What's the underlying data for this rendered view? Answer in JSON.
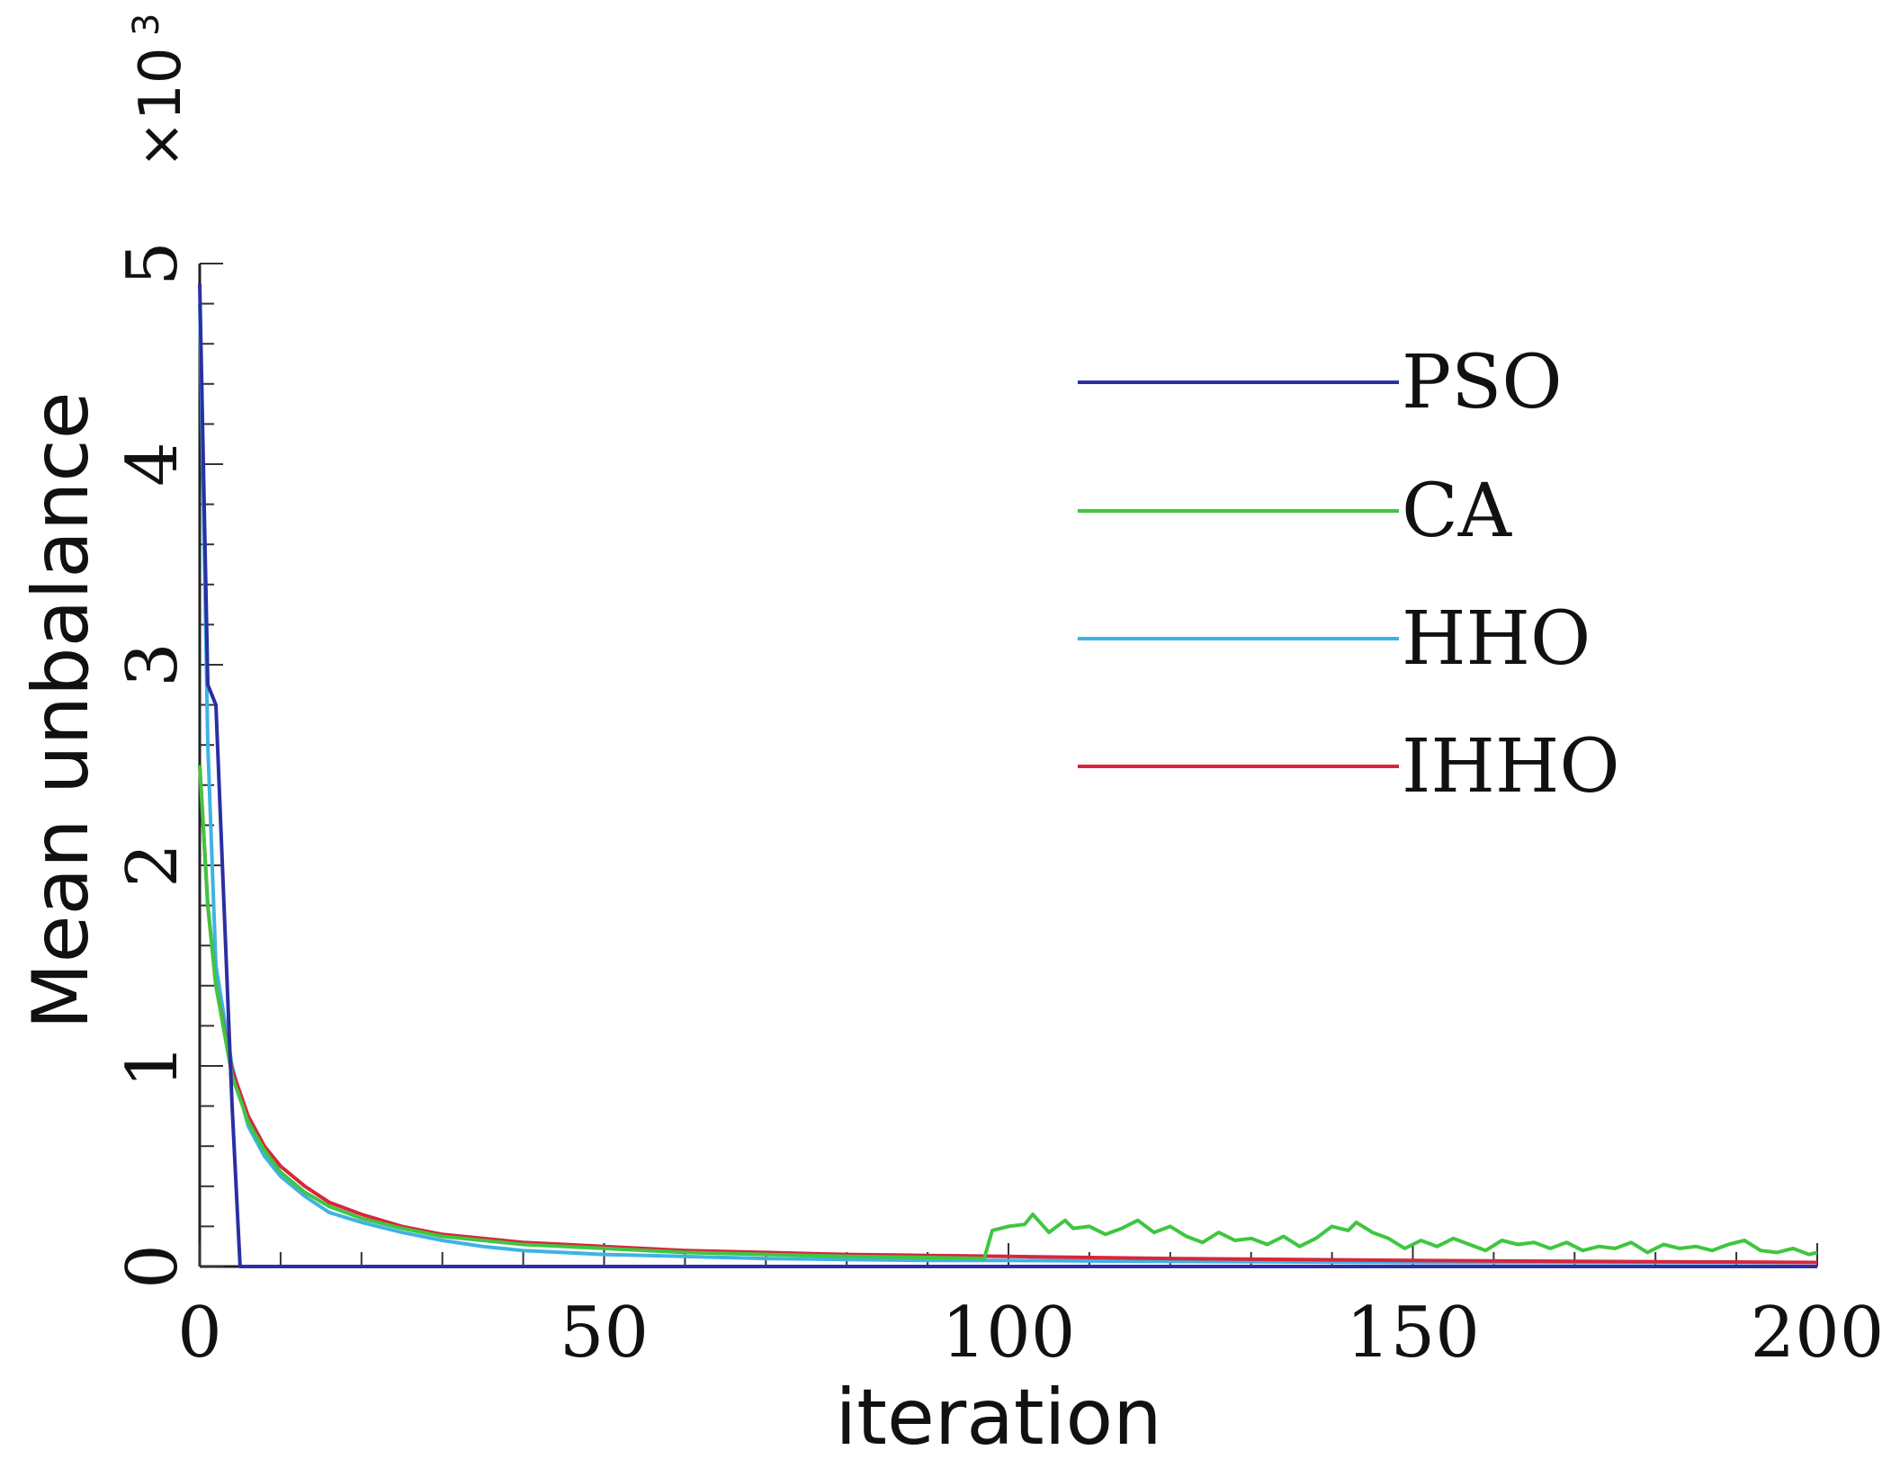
{
  "chart_data": {
    "type": "line",
    "title": "",
    "xlabel": "iteration",
    "ylabel": "Mean unbalance",
    "y_scale_label": "×10",
    "y_scale_exponent": "3",
    "xlim": [
      0,
      200
    ],
    "ylim": [
      0,
      5
    ],
    "xticks": [
      0,
      50,
      100,
      150,
      200
    ],
    "xtick_labels": [
      "0",
      "50",
      "100",
      "150",
      "200"
    ],
    "yticks": [
      0,
      1,
      2,
      3,
      4,
      5
    ],
    "ytick_labels": [
      "0",
      "1",
      "2",
      "3",
      "4",
      "5"
    ],
    "grid": false,
    "legend_position": "top-right",
    "series": [
      {
        "name": "PSO",
        "color": "#2b2fa3",
        "x": [
          0,
          1,
          2,
          3,
          4,
          5,
          200
        ],
        "y": [
          4.9,
          2.9,
          2.8,
          1.8,
          0.8,
          0.0,
          0.0
        ]
      },
      {
        "name": "CA",
        "color": "#3fc63f",
        "x": [
          0,
          1,
          2,
          4,
          6,
          8,
          10,
          13,
          16,
          20,
          25,
          30,
          35,
          40,
          50,
          60,
          70,
          80,
          90,
          97,
          98,
          100,
          102,
          103,
          105,
          107,
          108,
          110,
          112,
          114,
          116,
          118,
          120,
          122,
          124,
          126,
          128,
          130,
          132,
          134,
          136,
          138,
          140,
          142,
          143,
          145,
          147,
          149,
          151,
          153,
          155,
          157,
          159,
          161,
          163,
          165,
          167,
          169,
          171,
          173,
          175,
          177,
          179,
          181,
          183,
          185,
          187,
          189,
          191,
          193,
          195,
          197,
          199,
          200
        ],
        "y": [
          2.5,
          1.8,
          1.4,
          0.95,
          0.72,
          0.58,
          0.47,
          0.37,
          0.3,
          0.24,
          0.19,
          0.15,
          0.13,
          0.11,
          0.09,
          0.07,
          0.06,
          0.05,
          0.045,
          0.04,
          0.18,
          0.2,
          0.21,
          0.26,
          0.17,
          0.23,
          0.19,
          0.2,
          0.16,
          0.19,
          0.23,
          0.17,
          0.2,
          0.15,
          0.12,
          0.17,
          0.13,
          0.14,
          0.11,
          0.15,
          0.1,
          0.14,
          0.2,
          0.18,
          0.22,
          0.17,
          0.14,
          0.09,
          0.13,
          0.1,
          0.14,
          0.11,
          0.08,
          0.13,
          0.11,
          0.12,
          0.09,
          0.12,
          0.08,
          0.1,
          0.09,
          0.12,
          0.07,
          0.11,
          0.09,
          0.1,
          0.08,
          0.11,
          0.13,
          0.08,
          0.07,
          0.09,
          0.06,
          0.07
        ]
      },
      {
        "name": "HHO",
        "color": "#3fb3e3",
        "x": [
          0,
          1,
          2,
          4,
          6,
          8,
          10,
          13,
          16,
          20,
          25,
          30,
          35,
          40,
          50,
          60,
          70,
          80,
          90,
          100,
          120,
          150,
          200
        ],
        "y": [
          4.8,
          2.6,
          1.5,
          1.0,
          0.7,
          0.55,
          0.45,
          0.35,
          0.27,
          0.22,
          0.17,
          0.13,
          0.1,
          0.08,
          0.06,
          0.05,
          0.04,
          0.035,
          0.03,
          0.03,
          0.025,
          0.02,
          0.02
        ]
      },
      {
        "name": "IHHO",
        "color": "#d7263d",
        "x": [
          0,
          1,
          2,
          4,
          6,
          8,
          10,
          13,
          16,
          20,
          25,
          30,
          35,
          40,
          50,
          60,
          70,
          80,
          90,
          100,
          120,
          150,
          200
        ],
        "y": [
          2.5,
          1.8,
          1.4,
          0.98,
          0.75,
          0.6,
          0.5,
          0.4,
          0.32,
          0.26,
          0.2,
          0.16,
          0.14,
          0.12,
          0.1,
          0.08,
          0.07,
          0.06,
          0.055,
          0.05,
          0.04,
          0.03,
          0.02
        ]
      }
    ]
  }
}
